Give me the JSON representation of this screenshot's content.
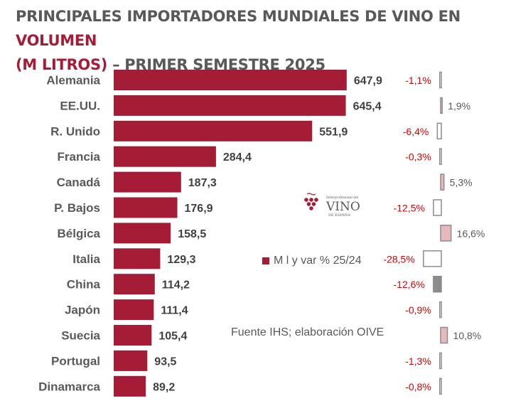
{
  "title": {
    "part1": "PRINCIPALES IMPORTADORES MUNDIALES DE VINO EN ",
    "highlight1": "VOLUMEN",
    "highlight2": "(M LITROS)",
    "part2": " – PRIMER SEMESTRE 2025"
  },
  "legend": {
    "label": "M l y var % 25/24"
  },
  "source": "Fuente IHS; elaboración OIVE",
  "logo": {
    "top_text": "Interprofesional del",
    "main_text": "VINO",
    "sub_text": "DE ESPAÑA"
  },
  "colors": {
    "bar": "#a51c37",
    "negative_text": "#e00000",
    "positive_text": "#595959",
    "var_positive_fill": "#e8b8bc",
    "var_stroke": "#8c8c8c"
  },
  "chart_data": {
    "type": "bar",
    "orientation": "horizontal",
    "title": "PRINCIPALES IMPORTADORES MUNDIALES DE VINO EN VOLUMEN (M LITROS) – PRIMER SEMESTRE 2025",
    "categories": [
      "Alemania",
      "EE.UU.",
      "R. Unido",
      "Francia",
      "Canadá",
      "P. Bajos",
      "Bélgica",
      "Italia",
      "China",
      "Japón",
      "Suecia",
      "Portugal",
      "Dinamarca"
    ],
    "series": [
      {
        "name": "M l",
        "values": [
          647.9,
          645.4,
          551.9,
          284.4,
          187.3,
          176.9,
          158.5,
          129.3,
          114.2,
          111.4,
          105.4,
          93.5,
          89.2
        ],
        "labels": [
          "647,9",
          "645,4",
          "551,9",
          "284,4",
          "187,3",
          "176,9",
          "158,5",
          "129,3",
          "114,2",
          "111,4",
          "105,4",
          "93,5",
          "89,2"
        ]
      },
      {
        "name": "var % 25/24",
        "values": [
          -1.1,
          1.9,
          -6.4,
          -0.3,
          5.3,
          -12.5,
          16.6,
          -28.5,
          -12.6,
          -0.9,
          10.8,
          -1.3,
          -0.8
        ],
        "labels": [
          "-1,1%",
          "1,9%",
          "-6,4%",
          "-0,3%",
          "5,3%",
          "-12,5%",
          "16,6%",
          "-28,5%",
          "-12,6%",
          "-0,9%",
          "10,8%",
          "-1,3%",
          "-0,8%"
        ]
      }
    ],
    "xlim": [
      0,
      700
    ]
  }
}
